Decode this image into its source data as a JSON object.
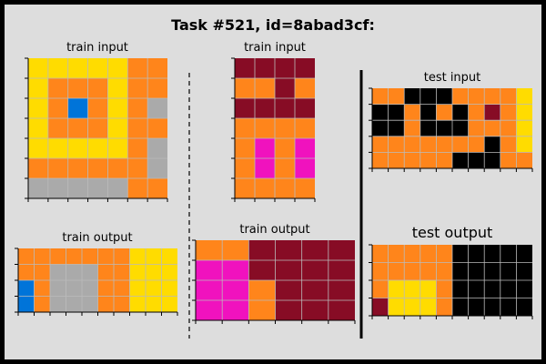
{
  "title": "Task #521, id=8abad3cf:",
  "panels": {
    "train_input_1": {
      "label": "train input",
      "rows": [
        "4444477",
        "4777477",
        "4717478",
        "4777477",
        "4444478",
        "7777778",
        "8888877"
      ]
    },
    "train_input_2": {
      "label": "train input",
      "rows": [
        "9999",
        "7797",
        "9999",
        "7777",
        "7676",
        "7676",
        "7777"
      ]
    },
    "test_input": {
      "label": "test input",
      "rows": [
        "7700077774",
        "0070707974",
        "0070007774",
        "7777777074",
        "7777700077"
      ]
    },
    "train_output_1": {
      "label": "train output",
      "rows": [
        "7777777444",
        "7788877444",
        "1788877444",
        "1788877444"
      ]
    },
    "train_output_2": {
      "label": "train output",
      "rows": [
        "779999",
        "669999",
        "667999",
        "667999"
      ]
    },
    "test_output": {
      "label": "test output",
      "rows": [
        "7777700000",
        "7777700000",
        "7444700000",
        "9444700000"
      ]
    }
  },
  "palette": {
    "0": "#000000",
    "1": "#0074D9",
    "4": "#FFDC00",
    "6": "#F012BE",
    "7": "#FF851B",
    "8": "#AAAAAA",
    "9": "#870C25"
  },
  "grid_line_color": "#bbbbbb",
  "background_color": "#dddddd"
}
